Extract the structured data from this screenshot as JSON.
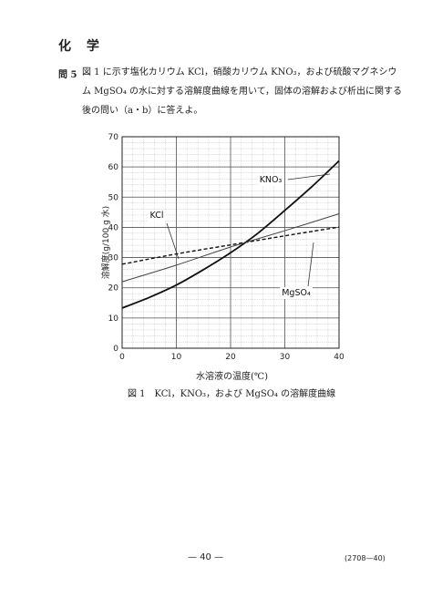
{
  "header": {
    "subject": "化 学"
  },
  "question": {
    "number": "問 5",
    "lines": [
      "図 1 に示す塩化カリウム KCl，硝酸カリウム KNO₃，および硫酸マグネシウ",
      "ム MgSO₄ の水に対する溶解度曲線を用いて，固体の溶解および析出に関する",
      "後の問い（a・b）に答えよ。"
    ]
  },
  "figure": {
    "caption": "図 1　KCl，KNO₃，および MgSO₄ の溶解度曲線",
    "chart_data": {
      "type": "line",
      "xlabel": "水溶液の温度(℃)",
      "ylabel": "溶解度(g/100 g 水)",
      "xlim": [
        0,
        40
      ],
      "ylim": [
        0,
        70
      ],
      "x_ticks": [
        0,
        10,
        20,
        30,
        40
      ],
      "y_ticks": [
        0,
        10,
        20,
        30,
        40,
        50,
        60,
        70
      ],
      "grid": true,
      "series": [
        {
          "name": "KNO₃",
          "style": "solid-bold",
          "color": "#111111",
          "x": [
            0,
            5,
            10,
            15,
            20,
            25,
            30,
            35,
            40
          ],
          "y": [
            13.3,
            16.8,
            20.9,
            26.0,
            31.6,
            38.0,
            45.6,
            53.5,
            62.0
          ]
        },
        {
          "name": "KCl",
          "style": "dashed",
          "color": "#111111",
          "x": [
            0,
            10,
            20,
            30,
            40
          ],
          "y": [
            27.8,
            31.2,
            34.2,
            37.2,
            40.1
          ]
        },
        {
          "name": "MgSO₄",
          "style": "solid-thin",
          "color": "#444444",
          "x": [
            0,
            10,
            20,
            30,
            40
          ],
          "y": [
            22.0,
            27.5,
            33.5,
            38.9,
            44.5
          ]
        }
      ],
      "annotations": [
        {
          "text": "KNO₃",
          "series": "KNO₃"
        },
        {
          "text": "KCl",
          "series": "KCl"
        },
        {
          "text": "MgSO₄",
          "series": "MgSO₄"
        }
      ]
    }
  },
  "footer": {
    "page": "— 40 —",
    "code": "(2708—40)"
  }
}
